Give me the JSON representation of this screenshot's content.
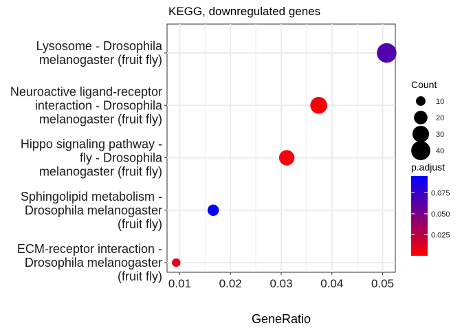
{
  "chart_data": {
    "type": "scatter",
    "title": "KEGG, downregulated genes",
    "xlabel": "GeneRatio",
    "ylabel": "",
    "xlim": [
      0.0075,
      0.0525
    ],
    "x_ticks": [
      "0.01",
      "0.02",
      "0.03",
      "0.04",
      "0.05"
    ],
    "grid": true,
    "legend_position": "right",
    "points": [
      {
        "label": [
          "Lysosome - Drosophila",
          "melanogaster (fruit fly)"
        ],
        "x": 0.0508,
        "count": 42,
        "p_adjust": 0.065
      },
      {
        "label": [
          "Neuroactive ligand-receptor",
          "interaction - Drosophila",
          "melanogaster (fruit fly)"
        ],
        "x": 0.0374,
        "count": 31,
        "p_adjust": 0.003
      },
      {
        "label": [
          "Hippo signaling pathway -",
          "fly - Drosophila",
          "melanogaster (fruit fly)"
        ],
        "x": 0.0311,
        "count": 26,
        "p_adjust": 0.004
      },
      {
        "label": [
          "Sphingolipid metabolism -",
          "Drosophila melanogaster",
          "(fruit fly)"
        ],
        "x": 0.0166,
        "count": 14,
        "p_adjust": 0.093
      },
      {
        "label": [
          "ECM-receptor interaction -",
          "Drosophila melanogaster",
          "(fruit fly)"
        ],
        "x": 0.0093,
        "count": 8,
        "p_adjust": 0.01
      }
    ],
    "size_legend": {
      "title": "Count",
      "values": [
        10,
        20,
        30,
        40
      ],
      "labels": [
        "10",
        "20",
        "30",
        "40"
      ]
    },
    "color_legend": {
      "title": "p.adjust",
      "ticks": [
        0.025,
        0.05,
        0.075
      ],
      "tick_labels": [
        "0.025",
        "0.050",
        "0.075"
      ],
      "range": [
        0.0,
        0.095
      ],
      "low_color": "#ff0000",
      "high_color": "#0000ff"
    },
    "panel_background": "#ffffff",
    "grid_color": "#ebebeb"
  }
}
